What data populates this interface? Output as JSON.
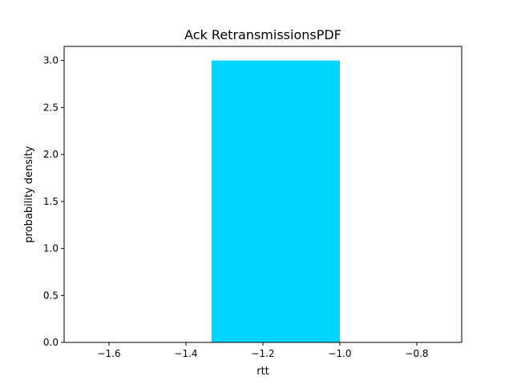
{
  "chart_data": {
    "type": "bar",
    "title": "Ack RetransmissionsPDF",
    "xlabel": "rtt",
    "ylabel": "probability density",
    "xlim": [
      -1.7166,
      -0.6833
    ],
    "ylim": [
      0.0,
      3.15
    ],
    "x_ticks": [
      -1.6,
      -1.4,
      -1.2,
      -1.0,
      -0.8
    ],
    "x_tick_labels": [
      "−1.6",
      "−1.4",
      "−1.2",
      "−1.0",
      "−0.8"
    ],
    "y_ticks": [
      0.0,
      0.5,
      1.0,
      1.5,
      2.0,
      2.5,
      3.0
    ],
    "y_tick_labels": [
      "0.0",
      "0.5",
      "1.0",
      "1.5",
      "2.0",
      "2.5",
      "3.0"
    ],
    "bars": [
      {
        "x_start": -1.3333,
        "x_end": -1.0,
        "value": 3.0
      }
    ],
    "bar_color": "#00d4ff",
    "grid": false,
    "legend": "none"
  }
}
